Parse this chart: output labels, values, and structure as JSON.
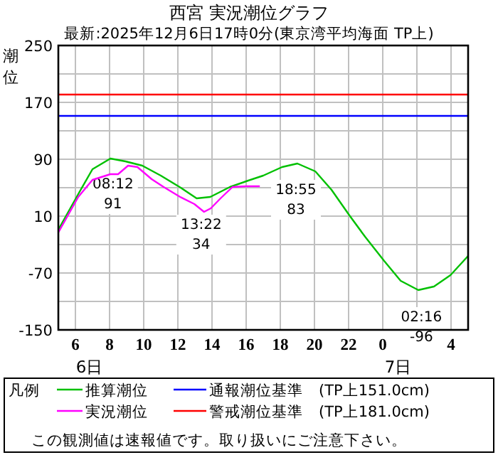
{
  "chart_data": {
    "type": "line",
    "title": "西宮 実況潮位グラフ",
    "subtitle": "最新:2025年12月6日17時0分(東京湾平均海面 TP上)",
    "ylabel": "潮位",
    "legend_title": "凡例",
    "xlim": [
      "2025-12-06T05:00",
      "2025-12-07T05:00"
    ],
    "ylim": [
      -150,
      250
    ],
    "xticks": [
      {
        "value": "2025-12-06T06:00",
        "label": "6"
      },
      {
        "value": "2025-12-06T08:00",
        "label": "8"
      },
      {
        "value": "2025-12-06T10:00",
        "label": "10"
      },
      {
        "value": "2025-12-06T12:00",
        "label": "12"
      },
      {
        "value": "2025-12-06T14:00",
        "label": "14"
      },
      {
        "value": "2025-12-06T16:00",
        "label": "16"
      },
      {
        "value": "2025-12-06T18:00",
        "label": "18"
      },
      {
        "value": "2025-12-06T20:00",
        "label": "20"
      },
      {
        "value": "2025-12-06T22:00",
        "label": "22"
      },
      {
        "value": "2025-12-07T00:00",
        "label": "0"
      },
      {
        "value": "2025-12-07T02:00",
        "label": null
      },
      {
        "value": "2025-12-07T04:00",
        "label": "4"
      }
    ],
    "yticks": [
      250,
      {
        "value": 210,
        "label": null
      },
      170,
      {
        "value": 130,
        "label": null
      },
      90,
      {
        "value": 50,
        "label": null
      },
      10,
      {
        "value": -30,
        "label": null
      },
      -70,
      {
        "value": -110,
        "label": null
      },
      -150
    ],
    "grid": true,
    "legend": "bottom",
    "series": [
      {
        "name": "推算潮位",
        "color": "#00c000",
        "x": [
          "2025-12-06T05:00",
          "2025-12-06T06:10",
          "2025-12-06T07:00",
          "2025-12-06T08:03",
          "2025-12-06T08:56",
          "2025-12-06T09:55",
          "2025-12-06T11:00",
          "2025-12-06T12:06",
          "2025-12-06T13:06",
          "2025-12-06T13:54",
          "2025-12-06T15:03",
          "2025-12-06T16:00",
          "2025-12-06T17:00",
          "2025-12-06T18:06",
          "2025-12-06T19:00",
          "2025-12-06T20:03",
          "2025-12-06T21:00",
          "2025-12-06T22:03",
          "2025-12-06T22:58",
          "2025-12-07T00:05",
          "2025-12-07T01:03",
          "2025-12-07T02:05",
          "2025-12-07T03:00",
          "2025-12-07T03:58",
          "2025-12-07T05:00"
        ],
        "values": [
          -9,
          41,
          76,
          91,
          87,
          81,
          67,
          51,
          35,
          37,
          51,
          59,
          67,
          79,
          84,
          73,
          47,
          11,
          -19,
          -53,
          -81,
          -94,
          -89,
          -73,
          -46
        ]
      },
      {
        "name": "実況潮位",
        "color": "#ff00ff",
        "x": [
          "2025-12-06T05:00",
          "2025-12-06T06:10",
          "2025-12-06T07:00",
          "2025-12-06T08:03",
          "2025-12-06T08:30",
          "2025-12-06T09:05",
          "2025-12-06T09:38",
          "2025-12-06T10:28",
          "2025-12-06T11:10",
          "2025-12-06T12:08",
          "2025-12-06T12:58",
          "2025-12-06T13:32",
          "2025-12-06T13:56",
          "2025-12-06T14:30",
          "2025-12-06T15:12",
          "2025-12-06T16:02",
          "2025-12-06T16:48"
        ],
        "values": [
          -13,
          37,
          61,
          69,
          69,
          81,
          79,
          62,
          51,
          37,
          27,
          16,
          21,
          35,
          51,
          52,
          52
        ]
      }
    ],
    "ref_lines": [
      {
        "axis": "y",
        "value": 151,
        "label": "通報潮位基準　(TP上151.0cm)",
        "color": "#0000ff"
      },
      {
        "axis": "y",
        "value": 181,
        "label": "警戒潮位基準　(TP上181.0cm)",
        "color": "#ff0000"
      }
    ],
    "annotations": [
      {
        "text": "08:12 91",
        "x": "2025-12-06T08:12",
        "y": 91
      },
      {
        "text": "13:22 34",
        "x": "2025-12-06T13:22",
        "y": 34
      },
      {
        "text": "18:55 83",
        "x": "2025-12-06T18:55",
        "y": 83
      },
      {
        "text": "02:16 -96",
        "x": "2025-12-07T02:16",
        "y": -96
      },
      "6日",
      "7日",
      "この観測値は速報値です。取り扱いにご注意下さい。"
    ]
  }
}
